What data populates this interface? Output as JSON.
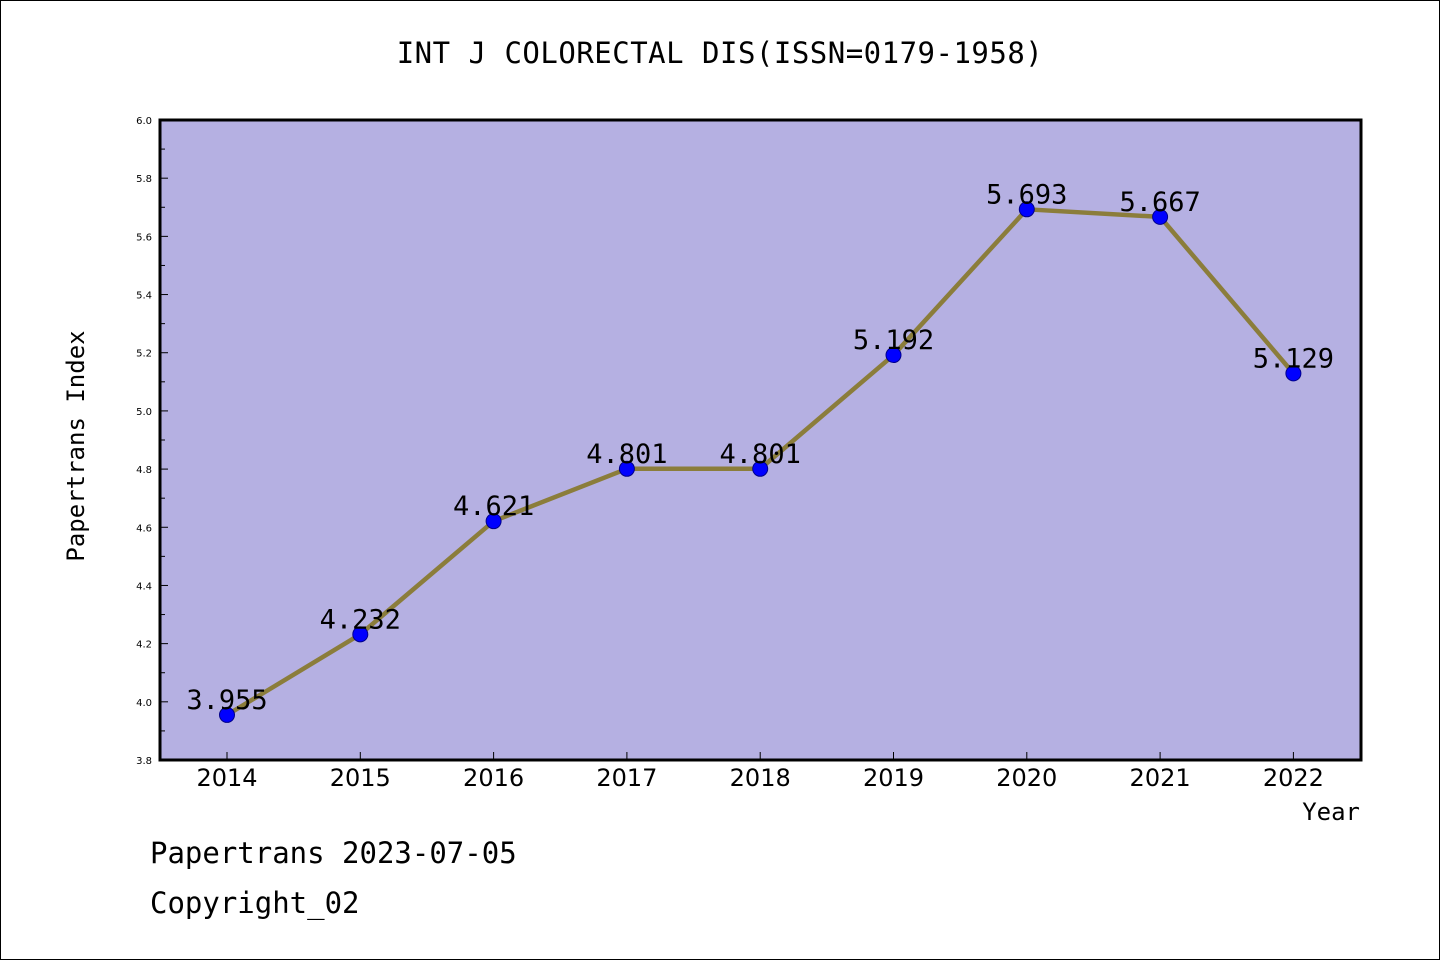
{
  "header": {
    "title": "INT J COLORECTAL DIS(ISSN=0179-1958)"
  },
  "footer": {
    "line1": "Papertrans 2023-07-05",
    "line2": "Copyright_02"
  },
  "colors": {
    "plot_bg": "#b5b0e2",
    "line": "#8b7d3b",
    "marker": "#0000ff",
    "axis": "#000000"
  },
  "chart_data": {
    "type": "line",
    "title": "INT J COLORECTAL DIS(ISSN=0179-1958)",
    "xlabel": "Year",
    "ylabel": "Papertrans Index",
    "categories": [
      "2014",
      "2015",
      "2016",
      "2017",
      "2018",
      "2019",
      "2020",
      "2021",
      "2022"
    ],
    "values": [
      3.955,
      4.232,
      4.621,
      4.801,
      4.801,
      5.192,
      5.693,
      5.667,
      5.129
    ],
    "data_labels": [
      "3.955",
      "4.232",
      "4.621",
      "4.801",
      "4.801",
      "5.192",
      "5.693",
      "5.667",
      "5.129"
    ],
    "ylim": [
      3.8,
      6.0
    ],
    "yticks": [
      "3.8",
      "4.0",
      "4.2",
      "4.4",
      "4.6",
      "4.8",
      "5.0",
      "5.2",
      "5.4",
      "5.6",
      "5.8",
      "6.0"
    ],
    "grid": false,
    "legend": "none"
  }
}
